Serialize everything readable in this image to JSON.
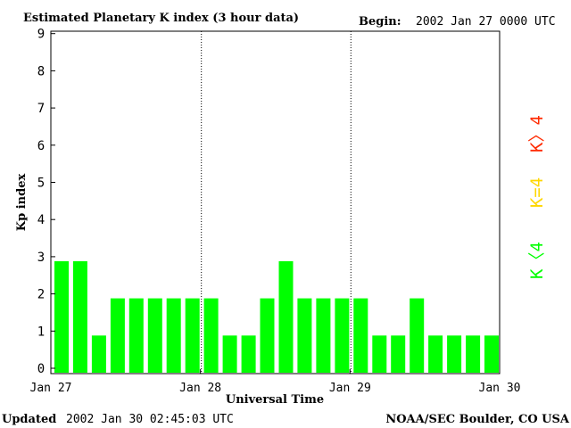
{
  "header": {
    "title": "Estimated Planetary K index (3 hour data)",
    "begin_label": "Begin:",
    "begin_value": "2002 Jan 27 0000 UTC"
  },
  "footer": {
    "updated_label": "Updated",
    "updated_value": "2002 Jan 30 02:45:03 UTC",
    "source": "NOAA/SEC Boulder, CO USA"
  },
  "legend": {
    "gt4": "K〉4",
    "eq4": "K=4",
    "lt4": "K〈4"
  },
  "colors": {
    "below_4": "#00ff00",
    "equal_4": "#ffd700",
    "above_4": "#ff2a00"
  },
  "chart_data": {
    "type": "bar",
    "title": "Estimated Planetary K index (3 hour data)",
    "xlabel": "Universal Time",
    "ylabel": "Kp index",
    "ylim": [
      0,
      9
    ],
    "yticks": [
      "0",
      "1",
      "2",
      "3",
      "4",
      "5",
      "6",
      "7",
      "8",
      "9"
    ],
    "xticks": [
      "Jan 27",
      "Jan 28",
      "Jan 29",
      "Jan 30"
    ],
    "grid": false,
    "day_separators": [
      "Jan 28",
      "Jan 29"
    ],
    "categories": [
      "Jan 27 00",
      "Jan 27 03",
      "Jan 27 06",
      "Jan 27 09",
      "Jan 27 12",
      "Jan 27 15",
      "Jan 27 18",
      "Jan 27 21",
      "Jan 28 00",
      "Jan 28 03",
      "Jan 28 06",
      "Jan 28 09",
      "Jan 28 12",
      "Jan 28 15",
      "Jan 28 18",
      "Jan 28 21",
      "Jan 29 00",
      "Jan 29 03",
      "Jan 29 06",
      "Jan 29 09",
      "Jan 29 12",
      "Jan 29 15",
      "Jan 29 18",
      "Jan 29 21"
    ],
    "values": [
      3,
      3,
      1,
      2,
      2,
      2,
      2,
      2,
      2,
      1,
      1,
      2,
      3,
      2,
      2,
      2,
      2,
      1,
      1,
      2,
      1,
      1,
      1,
      1
    ]
  }
}
